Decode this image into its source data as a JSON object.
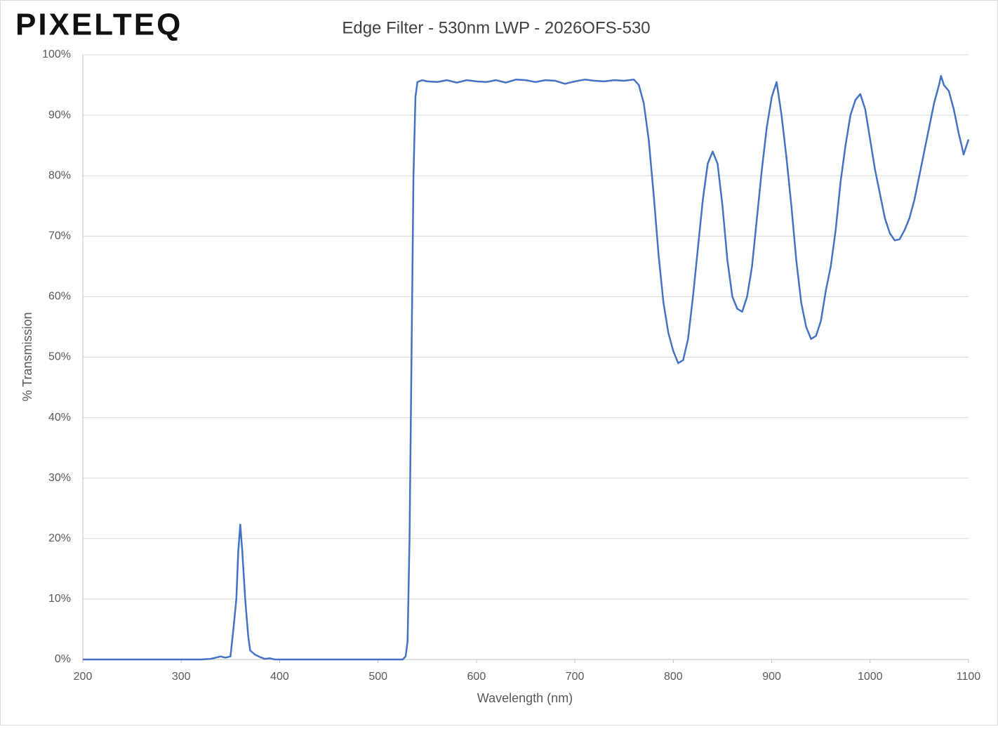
{
  "logo": "PIXELTEQ",
  "chart_data": {
    "type": "line",
    "title": "Edge Filter - 530nm LWP - 2026OFS-530",
    "x_label": "Wavelength (nm)",
    "y_label": "% Transmission",
    "xlim": [
      200,
      1100
    ],
    "xticks": [
      200,
      300,
      400,
      500,
      600,
      700,
      800,
      900,
      1000,
      1100
    ],
    "ylim": [
      0,
      100
    ],
    "yticks": [
      {
        "value": 0,
        "label": "0%"
      },
      {
        "value": 10,
        "label": "10%"
      },
      {
        "value": 20,
        "label": "20%"
      },
      {
        "value": 30,
        "label": "30%"
      },
      {
        "value": 40,
        "label": "40%"
      },
      {
        "value": 50,
        "label": "50%"
      },
      {
        "value": 60,
        "label": "60%"
      },
      {
        "value": 70,
        "label": "70%"
      },
      {
        "value": 80,
        "label": "80%"
      },
      {
        "value": 90,
        "label": "90%"
      },
      {
        "value": 100,
        "label": "100%"
      }
    ],
    "grid": true,
    "x": [
      200,
      220,
      240,
      260,
      280,
      300,
      320,
      330,
      335,
      340,
      345,
      350,
      353,
      356,
      358,
      360,
      362,
      365,
      368,
      370,
      375,
      380,
      385,
      390,
      395,
      400,
      450,
      500,
      525,
      528,
      530,
      532,
      534,
      536,
      538,
      540,
      545,
      550,
      560,
      570,
      580,
      590,
      600,
      610,
      620,
      630,
      640,
      650,
      660,
      670,
      680,
      690,
      700,
      710,
      720,
      730,
      740,
      750,
      760,
      765,
      770,
      775,
      780,
      785,
      790,
      795,
      800,
      805,
      810,
      815,
      820,
      825,
      830,
      835,
      840,
      845,
      850,
      855,
      860,
      865,
      870,
      875,
      880,
      885,
      890,
      895,
      900,
      905,
      910,
      915,
      920,
      925,
      930,
      935,
      940,
      945,
      950,
      955,
      960,
      965,
      970,
      975,
      980,
      985,
      990,
      995,
      1000,
      1005,
      1010,
      1015,
      1020,
      1025,
      1030,
      1035,
      1040,
      1045,
      1050,
      1055,
      1060,
      1065,
      1070,
      1072,
      1075,
      1080,
      1085,
      1090,
      1093,
      1095,
      1098,
      1100
    ],
    "series": [
      {
        "color": "#4472c4",
        "values": [
          0,
          0,
          0,
          0,
          0,
          0,
          0,
          0.1,
          0.3,
          0.5,
          0.3,
          0.5,
          5,
          10,
          18,
          22.3,
          18,
          10,
          4,
          1.5,
          0.8,
          0.4,
          0.1,
          0.2,
          0,
          0,
          0,
          0,
          0,
          0.5,
          3,
          20,
          50,
          80,
          93,
          95.5,
          95.8,
          95.6,
          95.5,
          95.8,
          95.4,
          95.8,
          95.6,
          95.5,
          95.8,
          95.4,
          95.9,
          95.8,
          95.5,
          95.8,
          95.7,
          95.2,
          95.6,
          95.9,
          95.7,
          95.6,
          95.8,
          95.7,
          95.9,
          95,
          92,
          86,
          77,
          67,
          59,
          54,
          51,
          49,
          49.5,
          53,
          60,
          68,
          76,
          82,
          84,
          82,
          75,
          66,
          60,
          58,
          57.5,
          60,
          65,
          73,
          81,
          88,
          93,
          95.5,
          90,
          83,
          75,
          66,
          59,
          55,
          53,
          53.5,
          56,
          61,
          65,
          71,
          79,
          85,
          90,
          92.5,
          93.5,
          91,
          86,
          81,
          77,
          73,
          70.5,
          69.3,
          69.5,
          71,
          73,
          76,
          80,
          84,
          88,
          92,
          95,
          96.5,
          95,
          94,
          91,
          87,
          85,
          83.5,
          85,
          86
        ]
      }
    ]
  }
}
